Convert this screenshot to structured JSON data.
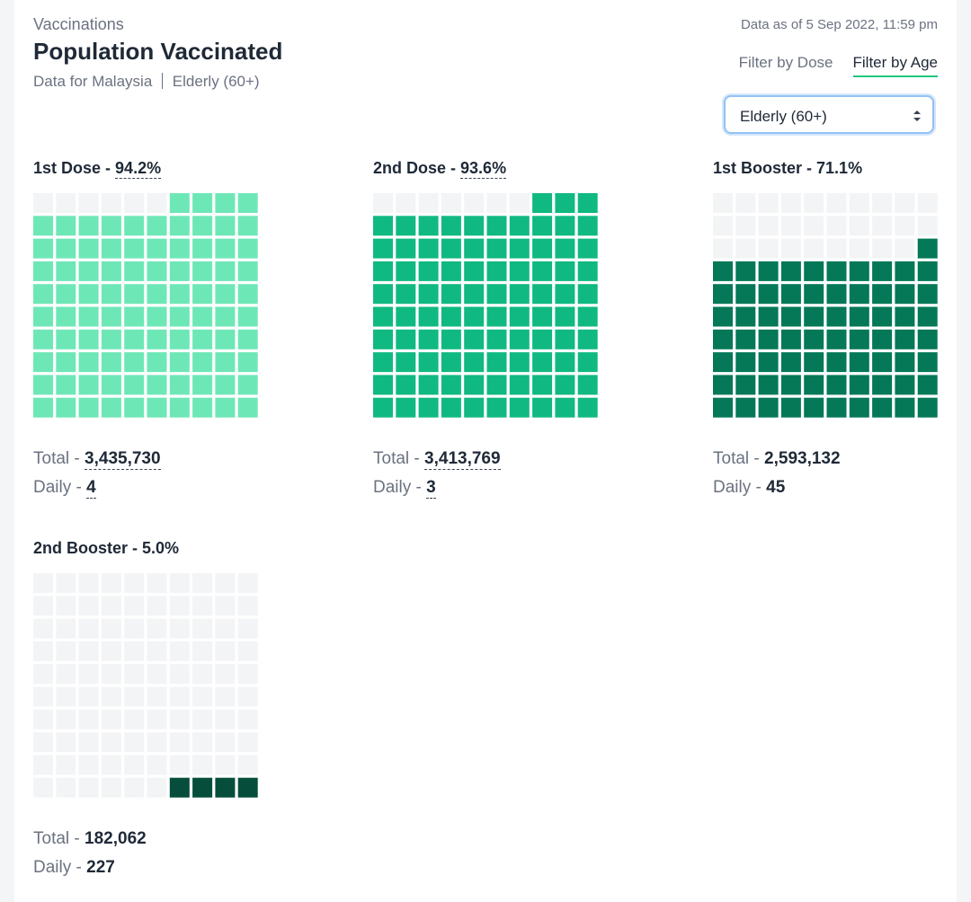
{
  "header": {
    "section": "Vaccinations",
    "title": "Population Vaccinated",
    "subtitle_prefix": "Data for Malaysia",
    "subtitle_group": "Elderly (60+)",
    "data_as_of": "Data as of 5 Sep 2022, 11:59 pm"
  },
  "tabs": [
    {
      "label": "Filter by Dose",
      "active": false
    },
    {
      "label": "Filter by Age",
      "active": true
    }
  ],
  "select": {
    "value": "Elderly (60+)"
  },
  "labels": {
    "total": "Total - ",
    "daily": "Daily - ",
    "sep": " - "
  },
  "cards": [
    {
      "name": "1st Dose",
      "percent": "94.2%",
      "filled": 94,
      "color": "#6ee7b7",
      "total": "3,435,730",
      "daily": "4",
      "dotted": true
    },
    {
      "name": "2nd Dose",
      "percent": "93.6%",
      "filled": 93,
      "color": "#10b981",
      "total": "3,413,769",
      "daily": "3",
      "dotted": true
    },
    {
      "name": "1st Booster",
      "percent": "71.1%",
      "filled": 71,
      "color": "#047857",
      "total": "2,593,132",
      "daily": "45",
      "dotted": false
    },
    {
      "name": "2nd Booster",
      "percent": "5.0%",
      "filled": 4,
      "color": "#064e3b",
      "total": "182,062",
      "daily": "227",
      "dotted": false
    }
  ],
  "empty_color": "#f3f4f6"
}
